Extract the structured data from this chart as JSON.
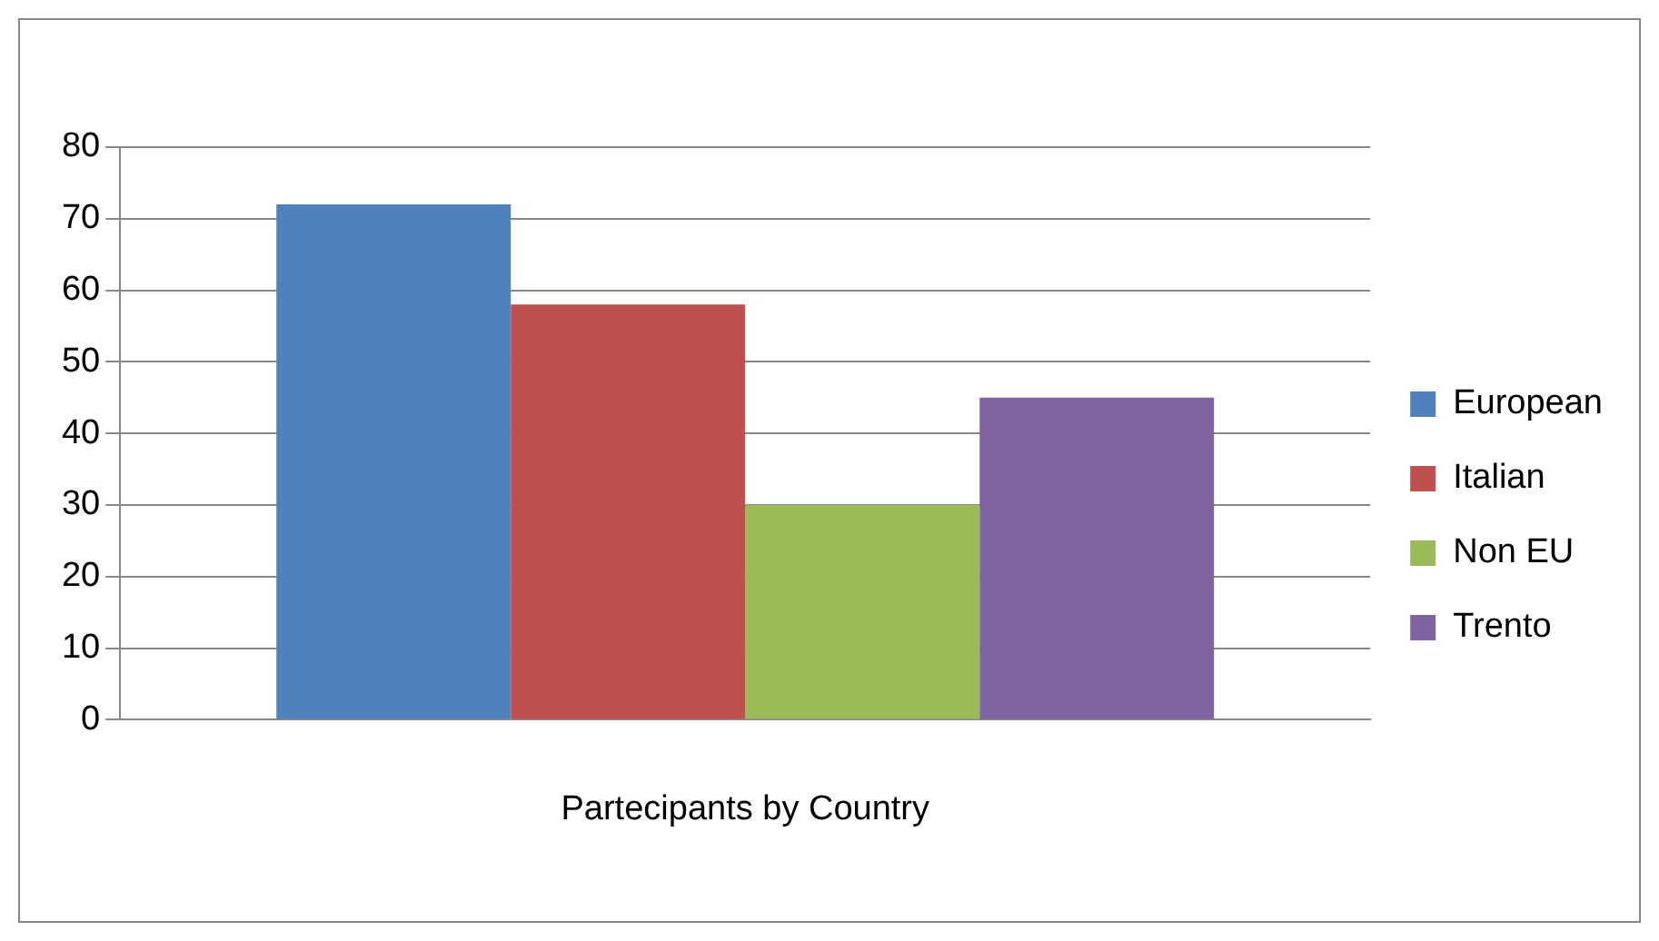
{
  "chart_data": {
    "type": "bar",
    "categories": [
      "Partecipants by Country"
    ],
    "series": [
      {
        "name": "European",
        "color": "#4f81bd",
        "values": [
          72
        ]
      },
      {
        "name": "Italian",
        "color": "#c0504d",
        "values": [
          58
        ]
      },
      {
        "name": "Non EU",
        "color": "#9bbb59",
        "values": [
          30
        ]
      },
      {
        "name": "Trento",
        "color": "#8064a2",
        "values": [
          45
        ]
      }
    ],
    "ylim": [
      0,
      80
    ],
    "yticks": [
      0,
      10,
      20,
      30,
      40,
      50,
      60,
      70,
      80
    ],
    "grid": "y",
    "legend": "right"
  }
}
